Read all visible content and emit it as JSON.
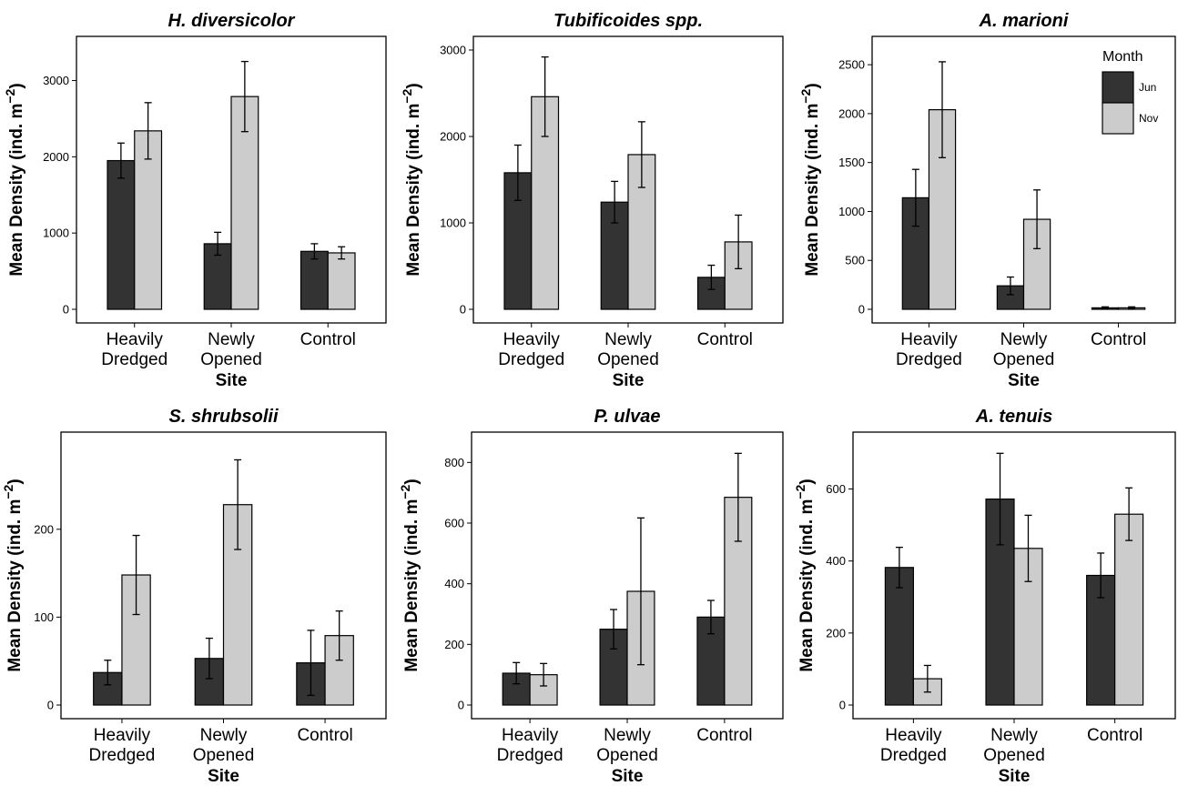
{
  "chart_data": [
    {
      "type": "bar",
      "title": "H. diversicolor",
      "xlabel": "Site",
      "ylabel": "Mean Density (ind. m−2)",
      "ylabel_main": "Mean Density (ind. m",
      "ylabel_sup": "−2",
      "ylabel_close": ")",
      "categories": [
        "Heavily Dredged",
        "Newly Opened",
        "Control"
      ],
      "category_lines": [
        [
          "Heavily",
          "Dredged"
        ],
        [
          "Newly",
          "Opened"
        ],
        [
          "Control"
        ]
      ],
      "ylim": [
        0,
        3400
      ],
      "yticks": [
        0,
        1000,
        2000,
        3000
      ],
      "series": [
        {
          "name": "Jun",
          "values": [
            1950,
            860,
            760
          ],
          "errors": [
            230,
            150,
            100
          ]
        },
        {
          "name": "Nov",
          "values": [
            2340,
            2790,
            740
          ],
          "errors": [
            370,
            460,
            80
          ]
        }
      ]
    },
    {
      "type": "bar",
      "title": "Tubificoides spp.",
      "xlabel": "Site",
      "ylabel": "Mean Density (ind. m−2)",
      "ylabel_main": "Mean Density (ind. m",
      "ylabel_sup": "−2",
      "ylabel_close": ")",
      "categories": [
        "Heavily Dredged",
        "Newly Opened",
        "Control"
      ],
      "category_lines": [
        [
          "Heavily",
          "Dredged"
        ],
        [
          "Newly",
          "Opened"
        ],
        [
          "Control"
        ]
      ],
      "ylim": [
        0,
        3000
      ],
      "yticks": [
        0,
        1000,
        2000,
        3000
      ],
      "series": [
        {
          "name": "Jun",
          "values": [
            1580,
            1240,
            370
          ],
          "errors": [
            320,
            240,
            140
          ]
        },
        {
          "name": "Nov",
          "values": [
            2460,
            1790,
            780
          ],
          "errors": [
            460,
            380,
            310
          ]
        }
      ]
    },
    {
      "type": "bar",
      "title": "A. marioni",
      "xlabel": "Site",
      "ylabel": "Mean Density (ind. m−2)",
      "ylabel_main": "Mean Density (ind. m",
      "ylabel_sup": "−2",
      "ylabel_close": ")",
      "categories": [
        "Heavily Dredged",
        "Newly Opened",
        "Control"
      ],
      "category_lines": [
        [
          "Heavily",
          "Dredged"
        ],
        [
          "Newly",
          "Opened"
        ],
        [
          "Control"
        ]
      ],
      "ylim": [
        0,
        2650
      ],
      "yticks": [
        0,
        500,
        1000,
        1500,
        2000,
        2500
      ],
      "legend": {
        "title": "Month",
        "position": "top-right"
      },
      "series": [
        {
          "name": "Jun",
          "values": [
            1140,
            240,
            15
          ],
          "errors": [
            290,
            90,
            10
          ]
        },
        {
          "name": "Nov",
          "values": [
            2040,
            920,
            15
          ],
          "errors": [
            490,
            300,
            10
          ]
        }
      ]
    },
    {
      "type": "bar",
      "title": "S. shrubsolii",
      "xlabel": "Site",
      "ylabel": "Mean Density (ind. m−2)",
      "ylabel_main": "Mean Density (ind. m",
      "ylabel_sup": "−2",
      "ylabel_close": ")",
      "categories": [
        "Heavily Dredged",
        "Newly Opened",
        "Control"
      ],
      "category_lines": [
        [
          "Heavily",
          "Dredged"
        ],
        [
          "Newly",
          "Opened"
        ],
        [
          "Control"
        ]
      ],
      "ylim": [
        0,
        295
      ],
      "yticks": [
        0,
        100,
        200
      ],
      "series": [
        {
          "name": "Jun",
          "values": [
            37,
            53,
            48
          ],
          "errors": [
            14,
            23,
            37
          ]
        },
        {
          "name": "Nov",
          "values": [
            148,
            228,
            79
          ],
          "errors": [
            45,
            51,
            28
          ]
        }
      ]
    },
    {
      "type": "bar",
      "title": "P. ulvae",
      "xlabel": "Site",
      "ylabel": "Mean Density (ind. m−2)",
      "ylabel_main": "Mean Density (ind. m",
      "ylabel_sup": "−2",
      "ylabel_close": ")",
      "categories": [
        "Heavily Dredged",
        "Newly Opened",
        "Control"
      ],
      "category_lines": [
        [
          "Heavily",
          "Dredged"
        ],
        [
          "Newly",
          "Opened"
        ],
        [
          "Control"
        ]
      ],
      "ylim": [
        0,
        855
      ],
      "yticks": [
        0,
        200,
        400,
        600,
        800
      ],
      "series": [
        {
          "name": "Jun",
          "values": [
            105,
            250,
            290
          ],
          "errors": [
            35,
            65,
            55
          ]
        },
        {
          "name": "Nov",
          "values": [
            100,
            375,
            685
          ],
          "errors": [
            37,
            242,
            145
          ]
        }
      ]
    },
    {
      "type": "bar",
      "title": "A. tenuis",
      "xlabel": "Site",
      "ylabel": "Mean Density (ind. m−2)",
      "ylabel_main": "Mean Density (ind. m",
      "ylabel_sup": "−2",
      "ylabel_close": ")",
      "categories": [
        "Heavily Dredged",
        "Newly Opened",
        "Control"
      ],
      "category_lines": [
        [
          "Heavily",
          "Dredged"
        ],
        [
          "Newly",
          "Opened"
        ],
        [
          "Control"
        ]
      ],
      "ylim": [
        0,
        720
      ],
      "yticks": [
        0,
        200,
        400,
        600
      ],
      "series": [
        {
          "name": "Jun",
          "values": [
            382,
            572,
            360
          ],
          "errors": [
            56,
            127,
            62
          ]
        },
        {
          "name": "Nov",
          "values": [
            73,
            435,
            530
          ],
          "errors": [
            37,
            92,
            73
          ]
        }
      ]
    }
  ],
  "colors": {
    "Jun": "#333333",
    "Nov": "#cccccc",
    "edge": "#000000",
    "background": "#ffffff"
  }
}
